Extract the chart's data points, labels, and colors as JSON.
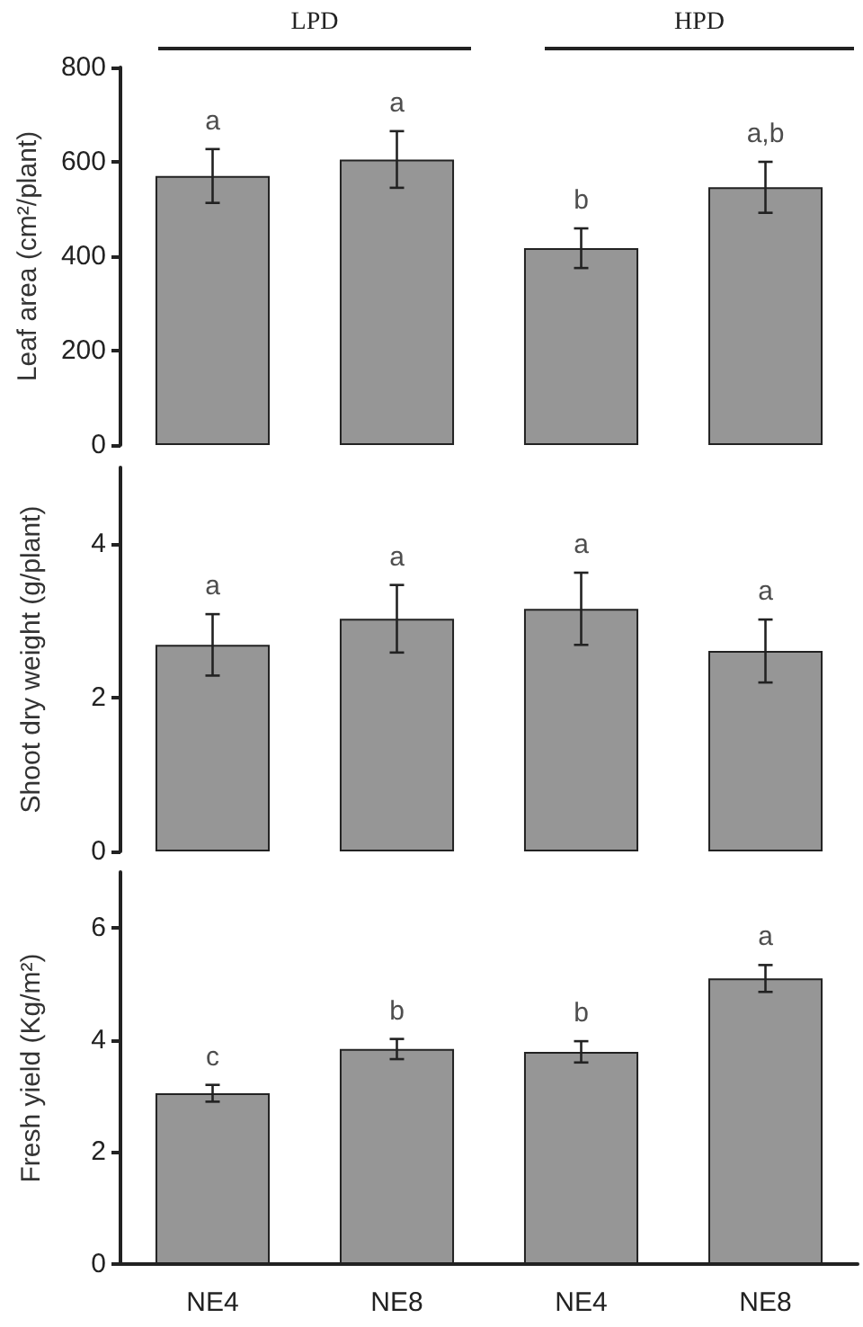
{
  "chart_data": [
    {
      "type": "bar",
      "annotations": [
        "LPD",
        "HPD"
      ],
      "ylabel": "Leaf area (cm²/plant)",
      "categories": [
        null,
        null,
        null,
        null
      ],
      "values": [
        570,
        605,
        417,
        546
      ],
      "errors": [
        57,
        60,
        42,
        54
      ],
      "value_labels": [
        "a",
        "a",
        "b",
        "a,b"
      ],
      "color": "#969696",
      "ylim": [
        0,
        800
      ],
      "yticks": [
        0,
        200,
        400,
        600,
        800
      ],
      "tick_labels": "y",
      "grid": false
    },
    {
      "type": "bar",
      "ylabel": "Shoot dry weight (g/plant)",
      "categories": [
        null,
        null,
        null,
        null
      ],
      "values": [
        2.69,
        3.03,
        3.16,
        2.61
      ],
      "errors": [
        0.4,
        0.44,
        0.47,
        0.41
      ],
      "value_labels": [
        "a",
        "a",
        "a",
        "a"
      ],
      "color": "#969696",
      "ylim": [
        0,
        5
      ],
      "yticks": [
        0,
        2,
        4
      ],
      "tick_labels": "y",
      "grid": false
    },
    {
      "type": "bar",
      "ylabel": "Fresh yield (Kg/m²)",
      "categories": [
        "NE4",
        "NE8",
        "NE4",
        "NE8"
      ],
      "values": [
        3.05,
        3.84,
        3.79,
        5.1
      ],
      "errors": [
        0.15,
        0.18,
        0.19,
        0.24
      ],
      "value_labels": [
        "c",
        "b",
        "b",
        "a"
      ],
      "color": "#969696",
      "ylim": [
        0,
        7
      ],
      "yticks": [
        0,
        2,
        4,
        6
      ],
      "grid": false
    }
  ]
}
